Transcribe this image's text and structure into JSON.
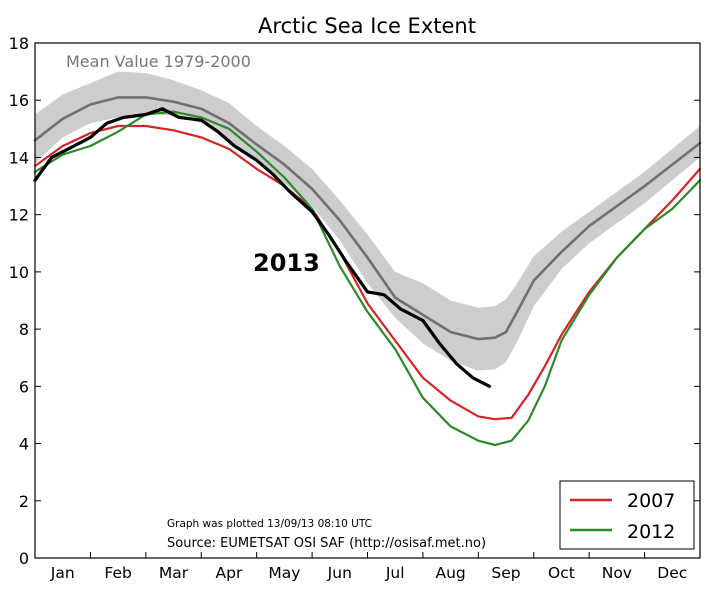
{
  "chart_data": {
    "type": "line",
    "title": "Arctic Sea Ice Extent",
    "xlabel": "",
    "ylabel": "",
    "ylim": [
      0,
      18
    ],
    "yticks": [
      0,
      2,
      4,
      6,
      8,
      10,
      12,
      14,
      16,
      18
    ],
    "xlim": [
      0,
      12
    ],
    "month_labels": [
      "Jan",
      "Feb",
      "Mar",
      "Apr",
      "May",
      "Jun",
      "Jul",
      "Aug",
      "Sep",
      "Oct",
      "Nov",
      "Dec"
    ],
    "grid": false,
    "legend_position": "bottom-right",
    "annotations": {
      "mean_label": "Mean Value 1979-2000",
      "year_label": "2013",
      "plotted_note": "Graph was plotted 13/09/13 08:10 UTC",
      "source_note": "Source: EUMETSAT OSI SAF (http://osisaf.met.no)"
    },
    "x_months": [
      0,
      0.5,
      1,
      1.5,
      2,
      2.5,
      3,
      3.5,
      4,
      4.5,
      5,
      5.5,
      6,
      6.5,
      7,
      7.5,
      8,
      8.3,
      8.5,
      8.7,
      9,
      9.5,
      10,
      10.5,
      11,
      11.5,
      12
    ],
    "band_upper": [
      15.5,
      16.2,
      16.6,
      17.0,
      16.95,
      16.7,
      16.35,
      15.9,
      15.1,
      14.4,
      13.6,
      12.5,
      11.3,
      10.0,
      9.6,
      9.0,
      8.75,
      8.8,
      9.05,
      9.6,
      10.55,
      11.4,
      12.1,
      12.8,
      13.5,
      14.3,
      15.1
    ],
    "band_lower": [
      13.8,
      14.7,
      15.2,
      15.4,
      15.55,
      15.45,
      15.2,
      14.6,
      13.9,
      13.1,
      12.3,
      11.1,
      9.6,
      8.4,
      7.5,
      6.9,
      6.55,
      6.6,
      6.85,
      7.55,
      8.8,
      10.1,
      11.0,
      11.7,
      12.4,
      13.2,
      14.0
    ],
    "series": [
      {
        "name": "Mean Value 1979-2000",
        "color": "#707070",
        "width": 2.6,
        "x": [
          0,
          0.5,
          1,
          1.5,
          2,
          2.5,
          3,
          3.5,
          4,
          4.5,
          5,
          5.5,
          6,
          6.5,
          7,
          7.5,
          8,
          8.3,
          8.5,
          8.7,
          9,
          9.5,
          10,
          10.5,
          11,
          11.5,
          12
        ],
        "values": [
          14.6,
          15.35,
          15.85,
          16.1,
          16.1,
          15.95,
          15.7,
          15.2,
          14.45,
          13.75,
          12.9,
          11.8,
          10.5,
          9.1,
          8.5,
          7.9,
          7.65,
          7.7,
          7.9,
          8.6,
          9.7,
          10.7,
          11.6,
          12.3,
          13.0,
          13.75,
          14.5
        ]
      },
      {
        "name": "2007",
        "color": "#d42424",
        "width": 2.2,
        "x": [
          0,
          0.5,
          1,
          1.5,
          2,
          2.5,
          3,
          3.5,
          4,
          4.5,
          5,
          5.5,
          6,
          6.5,
          7,
          7.5,
          8,
          8.3,
          8.6,
          8.9,
          9.2,
          9.5,
          10,
          10.5,
          11,
          11.5,
          12
        ],
        "values": [
          13.7,
          14.4,
          14.85,
          15.1,
          15.1,
          14.95,
          14.7,
          14.3,
          13.6,
          13.0,
          12.2,
          10.7,
          8.9,
          7.6,
          6.3,
          5.5,
          4.95,
          4.85,
          4.9,
          5.7,
          6.7,
          7.8,
          9.3,
          10.5,
          11.5,
          12.5,
          13.6
        ]
      },
      {
        "name": "2012",
        "color": "#2a8a2a",
        "width": 2.2,
        "x": [
          0,
          0.5,
          1,
          1.5,
          2,
          2.5,
          3,
          3.5,
          4,
          4.5,
          5,
          5.5,
          6,
          6.5,
          7,
          7.5,
          8,
          8.3,
          8.6,
          8.9,
          9.2,
          9.5,
          10,
          10.5,
          11,
          11.5,
          12
        ],
        "values": [
          13.5,
          14.1,
          14.4,
          14.9,
          15.5,
          15.6,
          15.4,
          15.0,
          14.2,
          13.3,
          12.2,
          10.2,
          8.6,
          7.3,
          5.6,
          4.6,
          4.1,
          3.95,
          4.1,
          4.8,
          6.0,
          7.6,
          9.2,
          10.5,
          11.5,
          12.2,
          13.2
        ]
      },
      {
        "name": "2013",
        "color": "#000000",
        "width": 3.2,
        "x": [
          0,
          0.3,
          0.6,
          1.0,
          1.3,
          1.6,
          2.0,
          2.3,
          2.6,
          3.0,
          3.3,
          3.6,
          4.0,
          4.3,
          4.6,
          5.0,
          5.3,
          5.6,
          6.0,
          6.3,
          6.6,
          7.0,
          7.3,
          7.6,
          7.9,
          8.2
        ],
        "values": [
          13.2,
          14.0,
          14.3,
          14.7,
          15.2,
          15.4,
          15.5,
          15.7,
          15.4,
          15.3,
          14.9,
          14.4,
          13.9,
          13.4,
          12.8,
          12.1,
          11.3,
          10.4,
          9.3,
          9.2,
          8.7,
          8.3,
          7.5,
          6.8,
          6.3,
          6.0
        ]
      }
    ],
    "legend": [
      "2007",
      "2012"
    ]
  }
}
